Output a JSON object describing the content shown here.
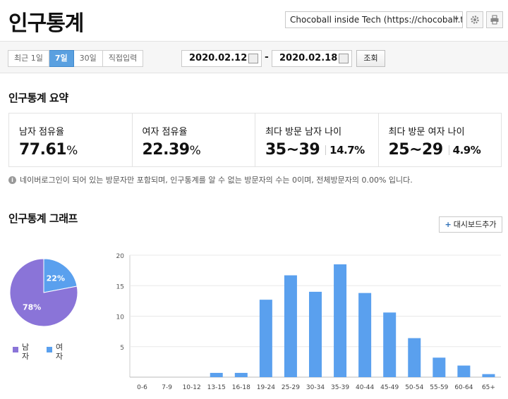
{
  "header": {
    "title": "인구통계",
    "blog_selector": "Chocoball inside Tech (https://chocoball.t···"
  },
  "toolbar": {
    "tabs": [
      {
        "label": "최근 1일",
        "active": false
      },
      {
        "label": "7일",
        "active": true
      },
      {
        "label": "30일",
        "active": false
      },
      {
        "label": "직접입력",
        "active": false
      }
    ],
    "date_from": "2020.02.12",
    "date_to": "2020.02.18",
    "dash": "-",
    "search_label": "조회"
  },
  "summary": {
    "title": "인구통계 요약",
    "cards": [
      {
        "label": "남자 점유율",
        "value": "77.61",
        "unit": "%"
      },
      {
        "label": "여자 점유율",
        "value": "22.39",
        "unit": "%"
      },
      {
        "label": "최다 방문 남자 나이",
        "value": "35~39",
        "sub": "14.7%"
      },
      {
        "label": "최다 방문 여자 나이",
        "value": "25~29",
        "sub": "4.9%"
      }
    ],
    "note": "네이버로그인이 되어 있는 방문자만 포함되며, 인구통계를 알 수 없는 방문자의 수는 0이며, 전체방문자의 0.00% 입니다."
  },
  "graph": {
    "title": "인구통계 그래프",
    "add_button": "대시보드추가"
  },
  "chart_data": [
    {
      "type": "pie",
      "categories": [
        "남자",
        "여자"
      ],
      "values": [
        78,
        22
      ],
      "labels": [
        "78%",
        "22%"
      ],
      "colors": [
        "#8a74d8",
        "#5aa0ee"
      ],
      "legend": [
        {
          "name": "남자",
          "color": "#8a74d8"
        },
        {
          "name": "여자",
          "color": "#5aa0ee"
        }
      ]
    },
    {
      "type": "bar",
      "categories": [
        "0-6",
        "7-9",
        "10-12",
        "13-15",
        "16-18",
        "19-24",
        "25-29",
        "30-34",
        "35-39",
        "40-44",
        "45-49",
        "50-54",
        "55-59",
        "60-64",
        "65+"
      ],
      "values": [
        0,
        0,
        0,
        0.7,
        0.7,
        12.7,
        16.7,
        14.0,
        18.5,
        13.8,
        10.6,
        6.4,
        3.2,
        1.9,
        0.5
      ],
      "ylim": [
        0,
        20
      ],
      "yticks": [
        5,
        10,
        15,
        20
      ],
      "color": "#5aa0ee",
      "grid": true
    }
  ]
}
